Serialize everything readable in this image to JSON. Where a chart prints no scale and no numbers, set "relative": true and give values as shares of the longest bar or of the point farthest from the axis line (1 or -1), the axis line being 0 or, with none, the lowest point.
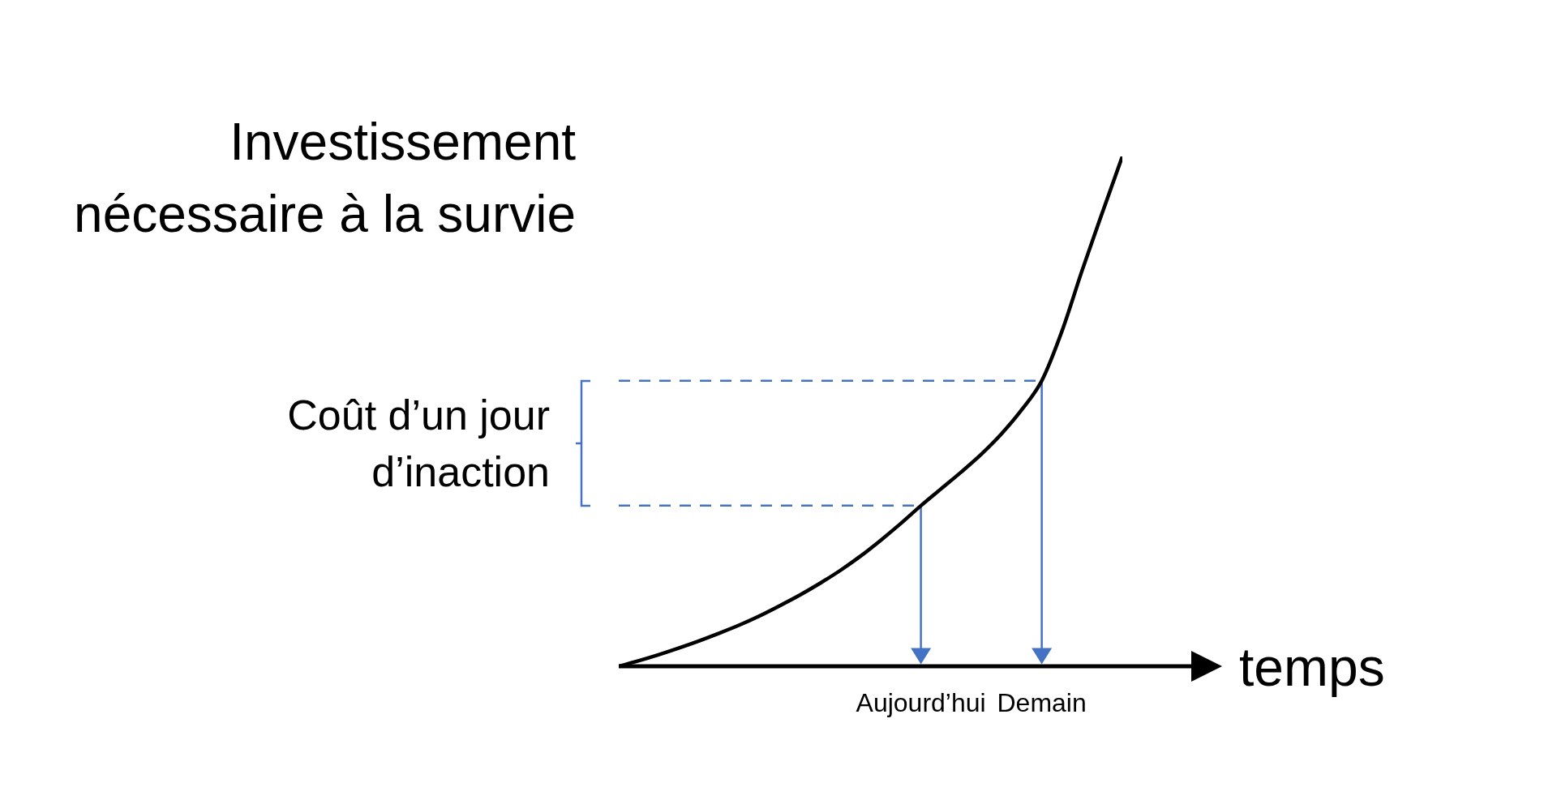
{
  "chart_data": {
    "type": "line",
    "relative": true,
    "xlabel": "temps",
    "ylabel": "Investissement nécessaire à la survie",
    "categories": [
      null,
      null,
      null,
      null,
      null,
      null,
      null,
      null,
      null,
      null,
      null,
      null,
      null,
      null,
      null,
      "Aujourd’hui",
      null,
      null,
      null,
      null,
      null,
      "Demain",
      null,
      null,
      null,
      null
    ],
    "series": [
      {
        "color": "#000000",
        "values": [
          0,
          0.011,
          0.023,
          0.036,
          0.05,
          0.065,
          0.081,
          0.099,
          0.119,
          0.14,
          0.163,
          0.188,
          0.216,
          0.247,
          0.28,
          0.315,
          0.348,
          0.381,
          0.416,
          0.456,
          0.503,
          0.56,
          0.657,
          0.776,
          0.889,
          1
        ]
      }
    ],
    "marker": "none",
    "ref_lines": [
      {
        "axis": "x",
        "value": "Aujourd’hui",
        "color": "#4472c4"
      },
      {
        "axis": "x",
        "value": "Demain",
        "color": "#4472c4"
      },
      {
        "axis": "y",
        "value": 0.315,
        "color": "#4472c4",
        "line_style": "dashed"
      },
      {
        "axis": "y",
        "value": 0.56,
        "color": "#4472c4",
        "line_style": "dashed"
      }
    ],
    "annotations": [
      "Coût d’un jour d’inaction"
    ]
  }
}
